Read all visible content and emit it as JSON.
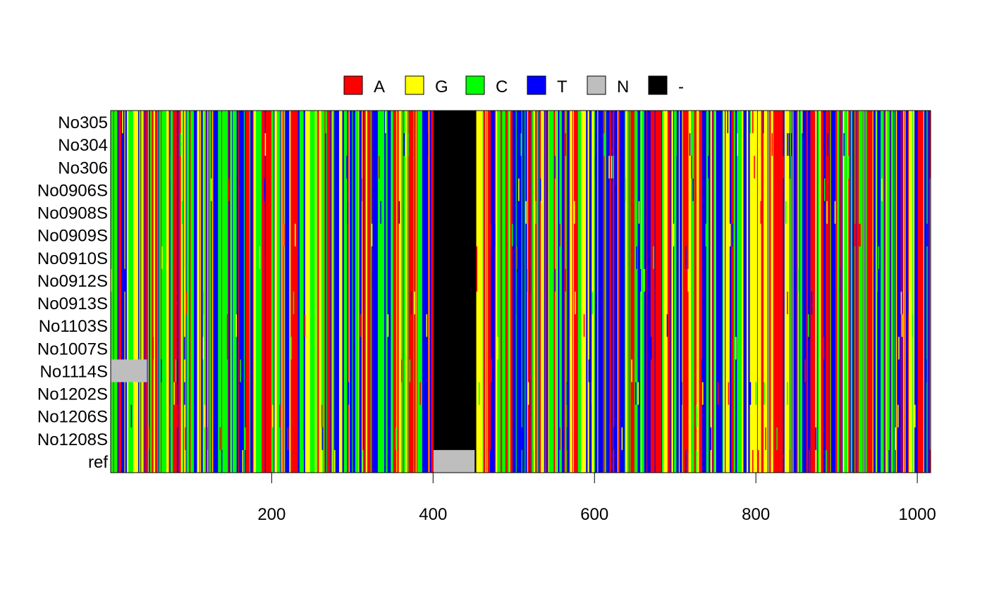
{
  "chart_data": {
    "type": "heatmap",
    "title": "",
    "xlabel": "",
    "ylabel": "",
    "sequence_length": 1016,
    "xlim": [
      0.5,
      1016.5
    ],
    "x_ticks": [
      200,
      400,
      600,
      800,
      1000
    ],
    "x_tick_labels": [
      "200",
      "400",
      "600",
      "800",
      "1000"
    ],
    "legend_position": "top",
    "legend": [
      {
        "label": "A",
        "color": "#FF0000"
      },
      {
        "label": "G",
        "color": "#FFFF00"
      },
      {
        "label": "C",
        "color": "#00FF00"
      },
      {
        "label": "T",
        "color": "#0000FF"
      },
      {
        "label": "N",
        "color": "#BEBEBE"
      },
      {
        "label": "-",
        "color": "#000000"
      }
    ],
    "rows": [
      "No305",
      "No304",
      "No306",
      "No0906S",
      "No0908S",
      "No0909S",
      "No0910S",
      "No0912S",
      "No0913S",
      "No1103S",
      "No1007S",
      "No1114S",
      "No1202S",
      "No1206S",
      "No1208S",
      "ref"
    ],
    "segments": [
      {
        "row": "all except ref",
        "start": 401,
        "end": 451,
        "base": "-"
      },
      {
        "row": "ref",
        "start": 401,
        "end": 451,
        "base": "N"
      },
      {
        "row": "No1114S",
        "start": 1,
        "end": 45,
        "base": "N"
      },
      {
        "row": "No0906S to No1208S",
        "start": 1016,
        "end": 1016,
        "base": "N"
      }
    ]
  }
}
